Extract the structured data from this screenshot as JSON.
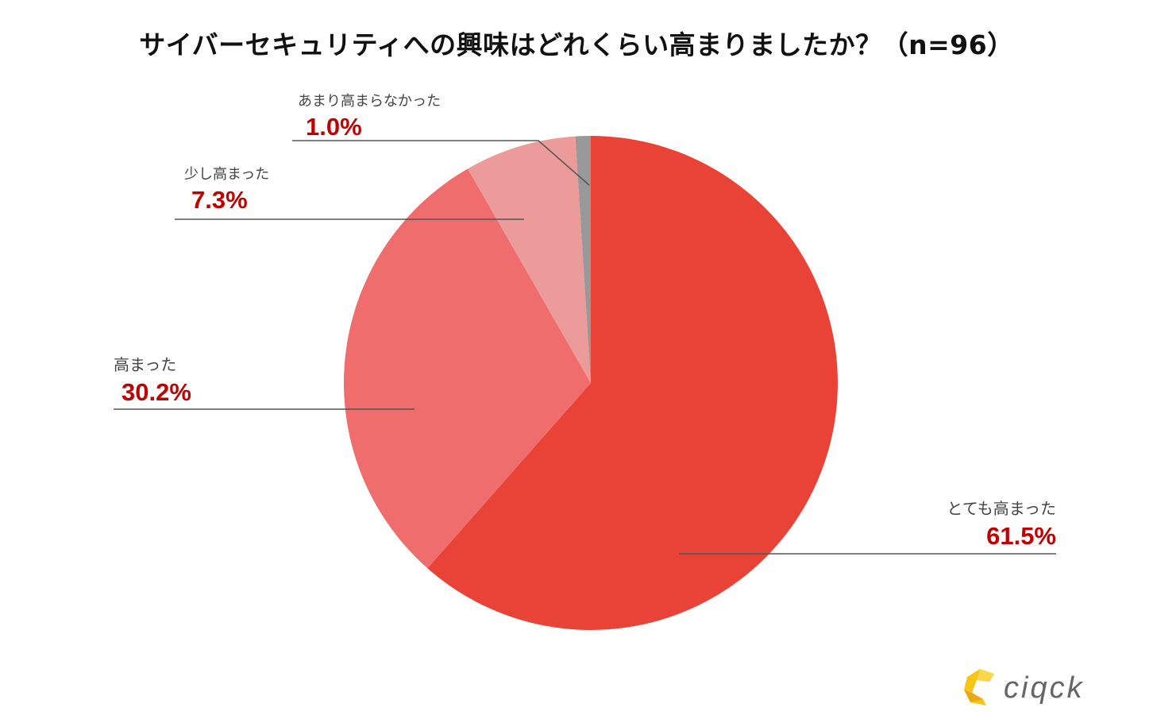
{
  "chart_data": {
    "type": "pie",
    "title": "サイバーセキュリティへの興味はどれくらい高まりましたか？（n=96）",
    "start": "top",
    "direction": "clockwise",
    "slices": [
      {
        "label": "とても高まった",
        "value": 61.5,
        "display": "61.5%",
        "color": "#E84336"
      },
      {
        "label": "高まった",
        "value": 30.2,
        "display": "30.2%",
        "color": "#F06D6D"
      },
      {
        "label": "少し高まった",
        "value": 7.3,
        "display": "7.3%",
        "color": "#EB9C9A"
      },
      {
        "label": "あまり高まらなかった",
        "value": 1.0,
        "display": "1.0%",
        "color": "#999999"
      }
    ]
  },
  "logo": {
    "text": "CIQCK",
    "colors": [
      "#F5C518",
      "#666666"
    ]
  }
}
